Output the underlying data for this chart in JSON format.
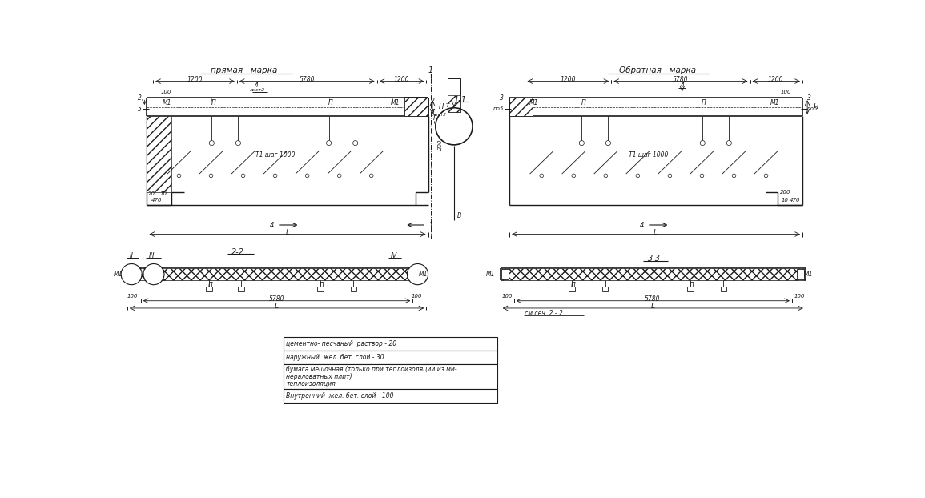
{
  "bg_color": "#ffffff",
  "line_color": "#1a1a1a",
  "label_pryamaya": "прямая   марка",
  "label_obratnaya": "Обратная   марка",
  "text_table": [
    "цементно- песчаный  раствор - 20",
    "наружный  жел. бет. слой - 30",
    "бумага мешочная (только при теплоизоляции из ми-",
    "нераловатных плит)",
    "теплоизоляция",
    "Внутренний  жел. бет. слой - 100"
  ]
}
